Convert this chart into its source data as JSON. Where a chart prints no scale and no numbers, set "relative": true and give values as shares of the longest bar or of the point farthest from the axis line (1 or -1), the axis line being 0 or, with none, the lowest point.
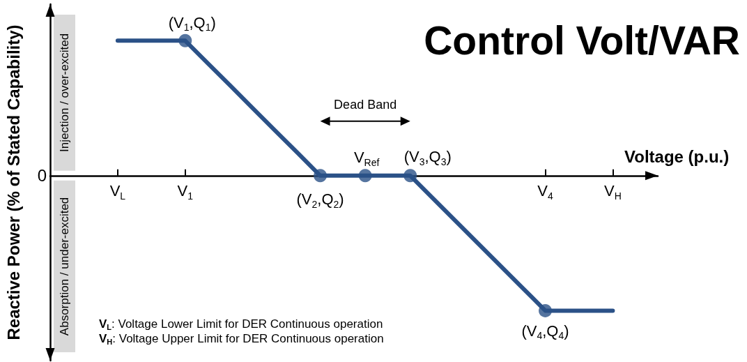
{
  "chart_data": {
    "type": "line",
    "title": "Control Volt/VAR",
    "xlabel": "Voltage (p.u.)",
    "ylabel": "Reactive Power (% of Stated Capability)",
    "relative": true,
    "categories": [
      null,
      null,
      null,
      "V$_{L}$",
      null,
      null,
      "V$_{1}$",
      null,
      null,
      null,
      null,
      null,
      null,
      null,
      null,
      null,
      null,
      null,
      null,
      null,
      null,
      null,
      "V$_{4}$",
      null,
      null,
      "V$_{H}$",
      null,
      null
    ],
    "line_style": "solid",
    "series": [
      {
        "color": "#2b5187",
        "marker": "none",
        "values": [
          null,
          null,
          null,
          1,
          1,
          1,
          1,
          0.833,
          0.667,
          0.5,
          0.333,
          0.167,
          0,
          0,
          0,
          0,
          0,
          -0.167,
          -0.333,
          -0.5,
          -0.667,
          -0.833,
          -1,
          -1,
          -1,
          -1,
          null,
          null
        ]
      },
      {
        "type": "scatter",
        "color": "#2b5187",
        "marker": "circle",
        "values": [
          null,
          null,
          null,
          null,
          null,
          null,
          1,
          null,
          null,
          null,
          null,
          null,
          0,
          null,
          0,
          null,
          0,
          null,
          null,
          null,
          null,
          null,
          -1,
          null,
          null,
          null,
          null,
          null
        ]
      }
    ],
    "annotations": [
      "(V$_{1}$,Q$_{1}$)",
      "(V$_{2}$,Q$_{2}$)",
      "V$_{Ref}$",
      "(V$_{3}$,Q$_{3}$)",
      "(V$_{4}$,Q$_{4}$)",
      "Dead Band",
      "0",
      "Injection / over-excited",
      "Absorption / under-excited",
      "V$_{L}$: Voltage Lower Limit for DER Continuous operation",
      "V$_{H}$: Voltage Upper Limit for DER Continuous operation"
    ]
  }
}
